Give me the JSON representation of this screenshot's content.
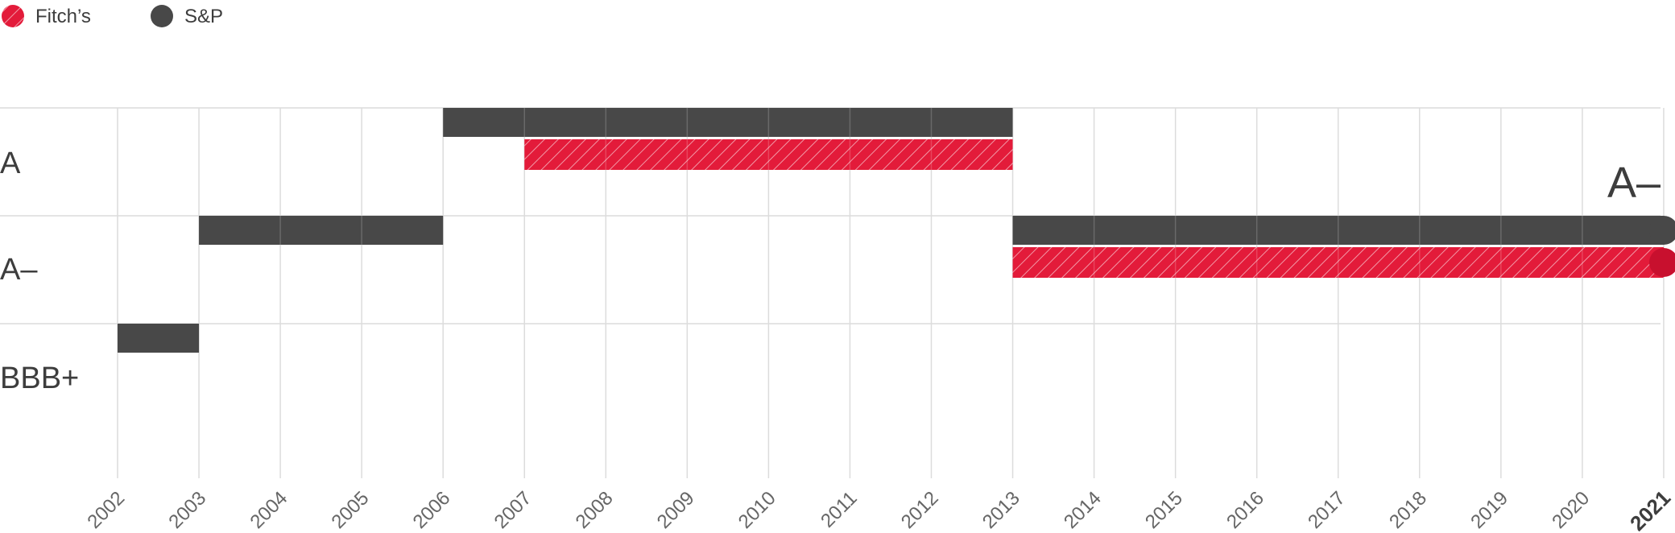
{
  "colors": {
    "sp": "#484848",
    "fitch": "#e31b3a",
    "fitch_dot": "#c8102e",
    "grid": "#dcdcdc",
    "text": "#3d3d3d",
    "tick": "#666666"
  },
  "icons": {
    "fitch": "hatched-circle-icon",
    "sp": "solid-circle-icon"
  },
  "chart_data": {
    "type": "bar",
    "subtype": "rating-timeline",
    "legend": [
      {
        "name": "Fitch’s",
        "style": "hatched"
      },
      {
        "name": "S&P",
        "style": "solid"
      }
    ],
    "legend_position": "top-left",
    "x_ticks": [
      "2002",
      "2003",
      "2004",
      "2005",
      "2006",
      "2007",
      "2008",
      "2009",
      "2010",
      "2011",
      "2012",
      "2013",
      "2014",
      "2015",
      "2016",
      "2017",
      "2018",
      "2019",
      "2020",
      "2021"
    ],
    "x_highlight": "2021",
    "x_range": [
      2002,
      2021
    ],
    "y_categories": [
      "A",
      "A–",
      "BBB+"
    ],
    "current_rating_label": "A–",
    "series": [
      {
        "name": "S&P",
        "segments": [
          {
            "rating": "BBB+",
            "from": 2002,
            "to": 2003
          },
          {
            "rating": "A–",
            "from": 2003,
            "to": 2006
          },
          {
            "rating": "A",
            "from": 2006,
            "to": 2013
          },
          {
            "rating": "A–",
            "from": 2013,
            "to": 2021
          }
        ]
      },
      {
        "name": "Fitch’s",
        "segments": [
          {
            "rating": "A",
            "from": 2007,
            "to": 2013
          },
          {
            "rating": "A–",
            "from": 2013,
            "to": 2021
          }
        ]
      }
    ],
    "grid": true
  }
}
